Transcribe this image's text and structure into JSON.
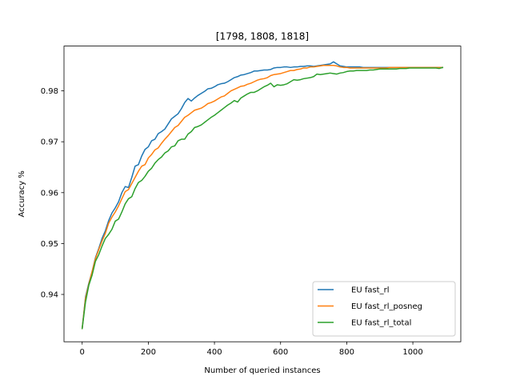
{
  "chart_data": {
    "type": "line",
    "title": "[1798, 1808, 1818]",
    "xlabel": "Number of queried instances",
    "ylabel": "Accuracy %",
    "xlim": [
      -55,
      1145
    ],
    "ylim": [
      0.9307,
      0.9888
    ],
    "xticks": [
      0,
      200,
      400,
      600,
      800,
      1000
    ],
    "xtick_labels": [
      "0",
      "200",
      "400",
      "600",
      "800",
      "1000"
    ],
    "yticks": [
      0.94,
      0.95,
      0.96,
      0.97,
      0.98
    ],
    "ytick_labels": [
      "0.94",
      "0.95",
      "0.96",
      "0.97",
      "0.98"
    ],
    "grid": false,
    "legend_position": "lower-right",
    "series": [
      {
        "name": "EU fast_rl",
        "color": "#1f77b4",
        "x": [
          0,
          10,
          20,
          30,
          40,
          50,
          60,
          70,
          80,
          90,
          100,
          110,
          120,
          130,
          140,
          150,
          160,
          170,
          180,
          190,
          200,
          210,
          220,
          230,
          240,
          250,
          260,
          270,
          280,
          290,
          300,
          310,
          320,
          330,
          340,
          350,
          360,
          370,
          380,
          390,
          400,
          410,
          420,
          430,
          440,
          450,
          460,
          470,
          480,
          490,
          500,
          510,
          520,
          530,
          540,
          550,
          560,
          570,
          580,
          590,
          600,
          610,
          620,
          630,
          640,
          650,
          660,
          670,
          680,
          690,
          700,
          710,
          720,
          730,
          740,
          750,
          760,
          770,
          780,
          790,
          800,
          810,
          820,
          830,
          840,
          850,
          860,
          870,
          880,
          890,
          900,
          910,
          920,
          930,
          940,
          950,
          960,
          970,
          980,
          990,
          1000,
          1010,
          1020,
          1030,
          1040,
          1050,
          1060,
          1070,
          1080,
          1090
        ],
        "y": [
          0.9333,
          0.9395,
          0.9422,
          0.9445,
          0.9472,
          0.949,
          0.951,
          0.9525,
          0.9545,
          0.956,
          0.957,
          0.9582,
          0.96,
          0.9612,
          0.961,
          0.963,
          0.9652,
          0.9655,
          0.9672,
          0.9685,
          0.969,
          0.9702,
          0.9705,
          0.9716,
          0.972,
          0.9725,
          0.9735,
          0.9745,
          0.975,
          0.9755,
          0.9765,
          0.9777,
          0.9785,
          0.978,
          0.9786,
          0.9791,
          0.9795,
          0.9799,
          0.9804,
          0.9805,
          0.9808,
          0.9812,
          0.9814,
          0.9815,
          0.9818,
          0.9822,
          0.9826,
          0.9828,
          0.9831,
          0.9832,
          0.9834,
          0.9836,
          0.9839,
          0.9839,
          0.984,
          0.9841,
          0.9841,
          0.9842,
          0.9845,
          0.9846,
          0.9846,
          0.9847,
          0.9847,
          0.9846,
          0.9847,
          0.9847,
          0.9848,
          0.9848,
          0.9849,
          0.9849,
          0.9848,
          0.9849,
          0.985,
          0.9851,
          0.9852,
          0.9853,
          0.9857,
          0.9853,
          0.9849,
          0.9848,
          0.9847,
          0.9847,
          0.9847,
          0.9847,
          0.9847,
          0.9846,
          0.9846,
          0.9846,
          0.9846,
          0.9846,
          0.9846,
          0.9846,
          0.9846,
          0.9846,
          0.9846,
          0.9846,
          0.9846,
          0.9846,
          0.9846,
          0.9846,
          0.9846,
          0.9846,
          0.9846,
          0.9846,
          0.9846,
          0.9846,
          0.9846,
          0.9846,
          0.9846,
          0.9846
        ]
      },
      {
        "name": "EU fast_rl_posneg",
        "color": "#ff7f0e",
        "x": [
          0,
          10,
          20,
          30,
          40,
          50,
          60,
          70,
          80,
          90,
          100,
          110,
          120,
          130,
          140,
          150,
          160,
          170,
          180,
          190,
          200,
          210,
          220,
          230,
          240,
          250,
          260,
          270,
          280,
          290,
          300,
          310,
          320,
          330,
          340,
          350,
          360,
          370,
          380,
          390,
          400,
          410,
          420,
          430,
          440,
          450,
          460,
          470,
          480,
          490,
          500,
          510,
          520,
          530,
          540,
          550,
          560,
          570,
          580,
          590,
          600,
          610,
          620,
          630,
          640,
          650,
          660,
          670,
          680,
          690,
          700,
          710,
          720,
          730,
          740,
          750,
          760,
          770,
          780,
          790,
          800,
          810,
          820,
          830,
          840,
          850,
          860,
          870,
          880,
          890,
          900,
          910,
          920,
          930,
          940,
          950,
          960,
          970,
          980,
          990,
          1000,
          1010,
          1020,
          1030,
          1040,
          1050,
          1060,
          1070,
          1080,
          1090
        ],
        "y": [
          0.9333,
          0.9392,
          0.942,
          0.9445,
          0.947,
          0.9488,
          0.9505,
          0.952,
          0.954,
          0.9552,
          0.9562,
          0.9574,
          0.9588,
          0.9602,
          0.9606,
          0.9618,
          0.963,
          0.9642,
          0.9652,
          0.9655,
          0.9668,
          0.9675,
          0.9684,
          0.9688,
          0.9697,
          0.9705,
          0.9712,
          0.972,
          0.9728,
          0.9732,
          0.974,
          0.9748,
          0.9752,
          0.9757,
          0.9762,
          0.9764,
          0.9766,
          0.977,
          0.9775,
          0.9777,
          0.978,
          0.9784,
          0.9788,
          0.979,
          0.9795,
          0.98,
          0.9803,
          0.9806,
          0.9809,
          0.981,
          0.9813,
          0.9815,
          0.9818,
          0.9821,
          0.9823,
          0.9824,
          0.9826,
          0.983,
          0.9832,
          0.9833,
          0.9834,
          0.9836,
          0.9838,
          0.984,
          0.984,
          0.9842,
          0.9843,
          0.9845,
          0.9845,
          0.9847,
          0.9847,
          0.9848,
          0.9849,
          0.985,
          0.985,
          0.985,
          0.985,
          0.9849,
          0.9847,
          0.9846,
          0.9846,
          0.9845,
          0.9845,
          0.9845,
          0.9845,
          0.9845,
          0.9845,
          0.9845,
          0.9845,
          0.9845,
          0.9845,
          0.9845,
          0.9845,
          0.9846,
          0.9846,
          0.9846,
          0.9846,
          0.9846,
          0.9846,
          0.9846,
          0.9846,
          0.9846,
          0.9846,
          0.9846,
          0.9846,
          0.9846,
          0.9846,
          0.9846,
          0.9846,
          0.9846
        ]
      },
      {
        "name": "EU fast_rl_total",
        "color": "#2ca02c",
        "x": [
          0,
          10,
          20,
          30,
          40,
          50,
          60,
          70,
          80,
          90,
          100,
          110,
          120,
          130,
          140,
          150,
          160,
          170,
          180,
          190,
          200,
          210,
          220,
          230,
          240,
          250,
          260,
          270,
          280,
          290,
          300,
          310,
          320,
          330,
          340,
          350,
          360,
          370,
          380,
          390,
          400,
          410,
          420,
          430,
          440,
          450,
          460,
          470,
          480,
          490,
          500,
          510,
          520,
          530,
          540,
          550,
          560,
          570,
          580,
          590,
          600,
          610,
          620,
          630,
          640,
          650,
          660,
          670,
          680,
          690,
          700,
          710,
          720,
          730,
          740,
          750,
          760,
          770,
          780,
          790,
          800,
          810,
          820,
          830,
          840,
          850,
          860,
          870,
          880,
          890,
          900,
          910,
          920,
          930,
          940,
          950,
          960,
          970,
          980,
          990,
          1000,
          1010,
          1020,
          1030,
          1040,
          1050,
          1060,
          1070,
          1080,
          1090
        ],
        "y": [
          0.9333,
          0.9385,
          0.9418,
          0.9438,
          0.9465,
          0.9478,
          0.9495,
          0.951,
          0.9518,
          0.9528,
          0.9544,
          0.9548,
          0.9562,
          0.9578,
          0.9588,
          0.9592,
          0.9608,
          0.962,
          0.9624,
          0.9632,
          0.9642,
          0.9648,
          0.9658,
          0.9665,
          0.967,
          0.9678,
          0.9682,
          0.969,
          0.9692,
          0.9702,
          0.9705,
          0.9705,
          0.9715,
          0.972,
          0.9728,
          0.973,
          0.9733,
          0.9738,
          0.9743,
          0.9748,
          0.9752,
          0.9757,
          0.9762,
          0.9767,
          0.9772,
          0.9776,
          0.9781,
          0.9778,
          0.9786,
          0.979,
          0.9794,
          0.9797,
          0.9797,
          0.98,
          0.9804,
          0.9808,
          0.9811,
          0.9815,
          0.9808,
          0.9812,
          0.9811,
          0.9812,
          0.9814,
          0.9818,
          0.9822,
          0.9821,
          0.9822,
          0.9824,
          0.9825,
          0.9826,
          0.9828,
          0.9833,
          0.9832,
          0.9833,
          0.9834,
          0.9835,
          0.9834,
          0.9833,
          0.9835,
          0.9836,
          0.9838,
          0.9839,
          0.9839,
          0.984,
          0.984,
          0.984,
          0.984,
          0.9841,
          0.9841,
          0.9842,
          0.9843,
          0.9843,
          0.9843,
          0.9843,
          0.9843,
          0.9843,
          0.9844,
          0.9844,
          0.9844,
          0.9845,
          0.9845,
          0.9845,
          0.9845,
          0.9845,
          0.9845,
          0.9845,
          0.9845,
          0.9845,
          0.9844,
          0.9846
        ]
      }
    ]
  }
}
